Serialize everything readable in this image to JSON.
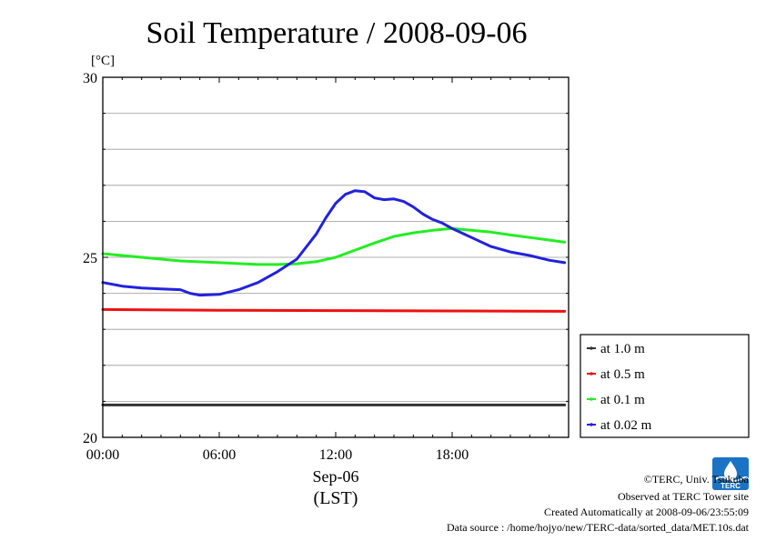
{
  "chart_data": {
    "type": "line",
    "title": "Soil Temperature / 2008-09-06",
    "ylabel": "[°C]",
    "xlabel_date": "Sep-06",
    "xlabel_tz": "(LST)",
    "xlim": [
      0,
      24
    ],
    "ylim": [
      20,
      30
    ],
    "x_ticks": [
      {
        "value": 0,
        "label": "00:00"
      },
      {
        "value": 6,
        "label": "06:00"
      },
      {
        "value": 12,
        "label": "12:00"
      },
      {
        "value": 18,
        "label": "18:00"
      }
    ],
    "y_ticks": [
      {
        "value": 20,
        "label": "20"
      },
      {
        "value": 25,
        "label": "25"
      },
      {
        "value": 30,
        "label": "30"
      }
    ],
    "y_gridlines": [
      21,
      22,
      23,
      24,
      25,
      26,
      27,
      28,
      29
    ],
    "legend_position": "lower-right outside",
    "series": [
      {
        "name": "at 1.0 m",
        "color": "#333333",
        "x": [
          0,
          6,
          12,
          18,
          23.8
        ],
        "y": [
          20.9,
          20.9,
          20.9,
          20.9,
          20.9
        ]
      },
      {
        "name": "at 0.5 m",
        "color": "#ee1111",
        "x": [
          0,
          6,
          12,
          18,
          23.8
        ],
        "y": [
          23.55,
          23.53,
          23.52,
          23.51,
          23.5
        ]
      },
      {
        "name": "at 0.1 m",
        "color": "#22ee22",
        "x": [
          0,
          2,
          4,
          6,
          8,
          9,
          10,
          11,
          12,
          13,
          14,
          15,
          16,
          17,
          18,
          19,
          20,
          21,
          22,
          23,
          23.8
        ],
        "y": [
          25.1,
          25.0,
          24.9,
          24.85,
          24.8,
          24.8,
          24.82,
          24.88,
          25.0,
          25.2,
          25.4,
          25.58,
          25.68,
          25.75,
          25.8,
          25.75,
          25.7,
          25.62,
          25.55,
          25.48,
          25.42
        ]
      },
      {
        "name": "at 0.02 m",
        "color": "#2222dd",
        "x": [
          0,
          1,
          2,
          3,
          4,
          4.5,
          5,
          6,
          7,
          8,
          9,
          10,
          11,
          11.5,
          12,
          12.5,
          13,
          13.5,
          14,
          14.5,
          15,
          15.5,
          16,
          16.5,
          17,
          17.5,
          18,
          19,
          20,
          21,
          22,
          23,
          23.8
        ],
        "y": [
          24.3,
          24.2,
          24.15,
          24.12,
          24.1,
          24.0,
          23.95,
          23.97,
          24.1,
          24.3,
          24.6,
          24.95,
          25.65,
          26.1,
          26.5,
          26.75,
          26.85,
          26.82,
          26.65,
          26.6,
          26.62,
          26.55,
          26.4,
          26.2,
          26.05,
          25.95,
          25.8,
          25.55,
          25.3,
          25.15,
          25.05,
          24.92,
          24.85
        ]
      }
    ]
  },
  "footer": {
    "credit": "©TERC, Univ. Tsukuba",
    "site": "Observed at TERC Tower site",
    "created": "Created Automatically at 2008-09-06/23:55:09",
    "source": "Data source : /home/hojyo/new/TERC-data/sorted_data/MET.10s.dat"
  },
  "logo": {
    "text": "TERC",
    "color": "#1a73c4"
  }
}
